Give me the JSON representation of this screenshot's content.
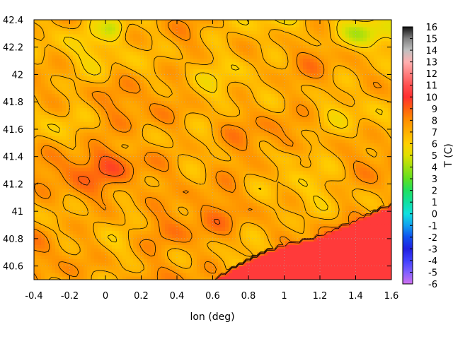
{
  "chart_data": {
    "type": "heatmap",
    "title": "",
    "xlabel": "lon (deg)",
    "ylabel": "",
    "colorbar_label": "T (C)",
    "xlim": [
      -0.4,
      1.6
    ],
    "ylim": [
      40.5,
      42.4
    ],
    "x_ticks": [
      "-0.4",
      "-0.2",
      "0",
      "0.2",
      "0.4",
      "0.6",
      "0.8",
      "1",
      "1.2",
      "1.4",
      "1.6"
    ],
    "y_ticks": [
      "40.6",
      "40.8",
      "41",
      "41.2",
      "41.4",
      "41.6",
      "41.8",
      "42",
      "42.2",
      "42.4"
    ],
    "colorbar_range": [
      -6,
      16
    ],
    "colorbar_ticks": [
      "16",
      "15",
      "14",
      "13",
      "12",
      "11",
      "10",
      "9",
      "8",
      "7",
      "6",
      "5",
      "4",
      "3",
      "2",
      "1",
      "0",
      "-1",
      "-2",
      "-3",
      "-4",
      "-5",
      "-6"
    ],
    "colorbar_colors": {
      "-6": "#d070f0",
      "-5": "#8060ff",
      "-4": "#4040ff",
      "-3": "#2020e0",
      "-2": "#1050f0",
      "-1": "#10a0f0",
      "0": "#10e0e0",
      "1": "#10e0a0",
      "2": "#20e060",
      "3": "#60e020",
      "4": "#a0e010",
      "5": "#e0e000",
      "6": "#ffd000",
      "7": "#ffb000",
      "8": "#ff9000",
      "9": "#ff6010",
      "10": "#ff3030",
      "11": "#ff5050",
      "12": "#ff8080",
      "13": "#ffb0b0",
      "14": "#c0c0c0",
      "15": "#808080",
      "16": "#101010"
    },
    "grid": true,
    "contours": true,
    "legend": "colorbar-right"
  }
}
